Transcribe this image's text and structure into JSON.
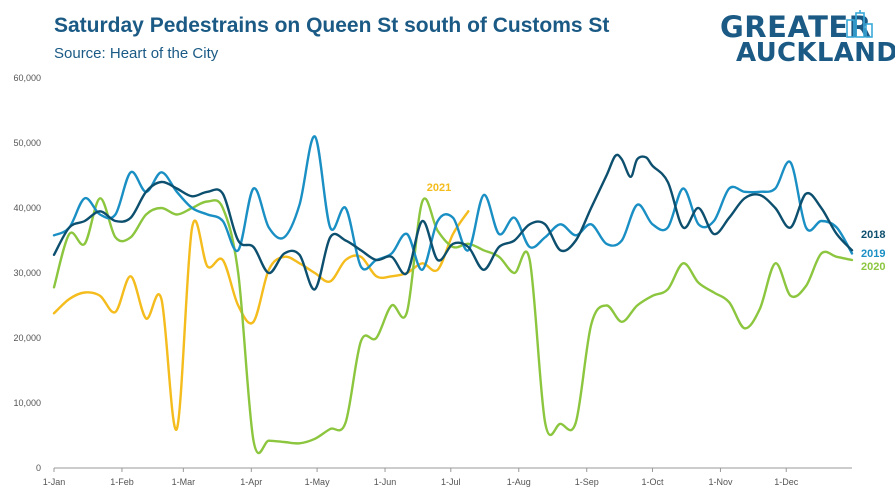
{
  "header": {
    "title": "Saturday Pedestrains on Queen St south of Customs St",
    "subtitle": "Source: Heart of the City"
  },
  "logo": {
    "line1": "GREATER",
    "line2": "AUCKLAND",
    "icon": "city-buildings-icon"
  },
  "chart_data": {
    "type": "line",
    "title": "Saturday Pedestrains on Queen St south of Customs St",
    "subtitle": "Source: Heart of the City",
    "xlabel": "",
    "ylabel": "",
    "ylim": [
      0,
      60000
    ],
    "y_ticks": [
      0,
      10000,
      20000,
      30000,
      40000,
      50000,
      60000
    ],
    "y_tick_labels": [
      "0",
      "10,000",
      "20,000",
      "30,000",
      "40,000",
      "50,000",
      "60,000"
    ],
    "x_range": [
      0,
      364
    ],
    "x_ticks": [
      0,
      31,
      59,
      90,
      120,
      151,
      181,
      212,
      243,
      273,
      304,
      334
    ],
    "x_tick_labels": [
      "1-Jan",
      "1-Feb",
      "1-Mar",
      "1-Apr",
      "1-May",
      "1-Jun",
      "1-Jul",
      "1-Aug",
      "1-Sep",
      "1-Oct",
      "1-Nov",
      "1-Dec"
    ],
    "x_unit": "day of year",
    "grid": false,
    "legend": "labels at line ends",
    "series": [
      {
        "name": "2018",
        "color": "#0d4f6e",
        "points": [
          [
            0,
            32800
          ],
          [
            7,
            37000
          ],
          [
            14,
            38000
          ],
          [
            21,
            39500
          ],
          [
            28,
            38000
          ],
          [
            35,
            38500
          ],
          [
            42,
            42500
          ],
          [
            49,
            44000
          ],
          [
            56,
            43000
          ],
          [
            63,
            41800
          ],
          [
            70,
            42500
          ],
          [
            77,
            42200
          ],
          [
            84,
            35000
          ],
          [
            91,
            34000
          ],
          [
            98,
            30000
          ],
          [
            105,
            33000
          ],
          [
            112,
            32800
          ],
          [
            119,
            27500
          ],
          [
            126,
            35500
          ],
          [
            133,
            35000
          ],
          [
            140,
            33500
          ],
          [
            147,
            32000
          ],
          [
            154,
            32500
          ],
          [
            161,
            30000
          ],
          [
            168,
            38000
          ],
          [
            175,
            32000
          ],
          [
            182,
            34500
          ],
          [
            189,
            34000
          ],
          [
            196,
            30500
          ],
          [
            203,
            34000
          ],
          [
            210,
            35000
          ],
          [
            217,
            37500
          ],
          [
            224,
            37500
          ],
          [
            231,
            33500
          ],
          [
            238,
            35000
          ],
          [
            245,
            40000
          ],
          [
            252,
            45000
          ],
          [
            256,
            48000
          ],
          [
            259,
            47500
          ],
          [
            263,
            44800
          ],
          [
            266,
            47500
          ],
          [
            270,
            47800
          ],
          [
            273,
            46500
          ],
          [
            280,
            44000
          ],
          [
            287,
            37000
          ],
          [
            294,
            40000
          ],
          [
            301,
            36000
          ],
          [
            308,
            38500
          ],
          [
            315,
            41500
          ],
          [
            322,
            42000
          ],
          [
            329,
            40000
          ],
          [
            336,
            37000
          ],
          [
            343,
            42200
          ],
          [
            350,
            40000
          ],
          [
            357,
            36000
          ],
          [
            364,
            33500
          ]
        ]
      },
      {
        "name": "2019",
        "color": "#1a8fc4",
        "points": [
          [
            0,
            35800
          ],
          [
            7,
            37000
          ],
          [
            14,
            41500
          ],
          [
            21,
            39000
          ],
          [
            28,
            39000
          ],
          [
            35,
            45500
          ],
          [
            42,
            42500
          ],
          [
            49,
            45500
          ],
          [
            56,
            42500
          ],
          [
            63,
            40000
          ],
          [
            70,
            39000
          ],
          [
            77,
            38000
          ],
          [
            84,
            33500
          ],
          [
            91,
            43000
          ],
          [
            98,
            37000
          ],
          [
            105,
            35500
          ],
          [
            112,
            40500
          ],
          [
            119,
            51000
          ],
          [
            126,
            37000
          ],
          [
            133,
            40000
          ],
          [
            140,
            31000
          ],
          [
            147,
            32000
          ],
          [
            154,
            33000
          ],
          [
            161,
            36000
          ],
          [
            168,
            30500
          ],
          [
            175,
            38000
          ],
          [
            182,
            38500
          ],
          [
            189,
            33500
          ],
          [
            196,
            42000
          ],
          [
            203,
            36000
          ],
          [
            210,
            38500
          ],
          [
            217,
            34000
          ],
          [
            224,
            35500
          ],
          [
            231,
            37500
          ],
          [
            238,
            35800
          ],
          [
            245,
            37500
          ],
          [
            252,
            34500
          ],
          [
            259,
            35000
          ],
          [
            266,
            40500
          ],
          [
            273,
            37500
          ],
          [
            280,
            37000
          ],
          [
            287,
            43000
          ],
          [
            294,
            37500
          ],
          [
            301,
            38000
          ],
          [
            308,
            43000
          ],
          [
            315,
            42500
          ],
          [
            322,
            42500
          ],
          [
            329,
            43000
          ],
          [
            336,
            47000
          ],
          [
            343,
            37000
          ],
          [
            350,
            38000
          ],
          [
            357,
            37000
          ],
          [
            364,
            33000
          ]
        ]
      },
      {
        "name": "2020",
        "color": "#8cc63f",
        "points": [
          [
            0,
            27800
          ],
          [
            7,
            36000
          ],
          [
            14,
            34500
          ],
          [
            21,
            41500
          ],
          [
            28,
            35500
          ],
          [
            35,
            35500
          ],
          [
            42,
            39000
          ],
          [
            49,
            40000
          ],
          [
            56,
            39000
          ],
          [
            63,
            40000
          ],
          [
            70,
            41000
          ],
          [
            77,
            40000
          ],
          [
            84,
            30000
          ],
          [
            91,
            4200
          ],
          [
            98,
            4200
          ],
          [
            105,
            4000
          ],
          [
            112,
            3800
          ],
          [
            119,
            4500
          ],
          [
            126,
            6000
          ],
          [
            133,
            7000
          ],
          [
            140,
            19500
          ],
          [
            147,
            20000
          ],
          [
            154,
            25000
          ],
          [
            161,
            24000
          ],
          [
            168,
            41000
          ],
          [
            175,
            36500
          ],
          [
            182,
            34000
          ],
          [
            189,
            34500
          ],
          [
            196,
            33500
          ],
          [
            203,
            32500
          ],
          [
            210,
            30000
          ],
          [
            217,
            32000
          ],
          [
            224,
            7000
          ],
          [
            231,
            6800
          ],
          [
            238,
            7000
          ],
          [
            245,
            22000
          ],
          [
            252,
            25000
          ],
          [
            259,
            22500
          ],
          [
            266,
            25000
          ],
          [
            273,
            26500
          ],
          [
            280,
            27500
          ],
          [
            287,
            31500
          ],
          [
            294,
            28500
          ],
          [
            301,
            27000
          ],
          [
            308,
            25500
          ],
          [
            315,
            21500
          ],
          [
            322,
            24500
          ],
          [
            329,
            31500
          ],
          [
            336,
            26500
          ],
          [
            343,
            28000
          ],
          [
            350,
            33000
          ],
          [
            357,
            32500
          ],
          [
            364,
            32000
          ]
        ]
      },
      {
        "name": "2021",
        "color": "#f4bc1c",
        "points": [
          [
            0,
            23800
          ],
          [
            7,
            26000
          ],
          [
            14,
            27000
          ],
          [
            21,
            26500
          ],
          [
            28,
            24000
          ],
          [
            35,
            29500
          ],
          [
            42,
            23000
          ],
          [
            49,
            26000
          ],
          [
            56,
            6000
          ],
          [
            63,
            37000
          ],
          [
            70,
            31000
          ],
          [
            77,
            32000
          ],
          [
            84,
            25000
          ],
          [
            91,
            22500
          ],
          [
            98,
            30500
          ],
          [
            105,
            32500
          ],
          [
            112,
            31500
          ],
          [
            119,
            30000
          ],
          [
            126,
            28700
          ],
          [
            133,
            32000
          ],
          [
            140,
            32500
          ],
          [
            147,
            29500
          ],
          [
            154,
            29500
          ],
          [
            161,
            30000
          ],
          [
            168,
            31500
          ],
          [
            175,
            30500
          ],
          [
            182,
            36000
          ],
          [
            189,
            39500
          ]
        ]
      }
    ],
    "annotations": [
      {
        "text": "2021",
        "color": "#f4bc1c"
      },
      {
        "text": "2018",
        "color": "#0d4f6e"
      },
      {
        "text": "2019",
        "color": "#1a8fc4"
      },
      {
        "text": "2020",
        "color": "#8cc63f"
      }
    ]
  }
}
